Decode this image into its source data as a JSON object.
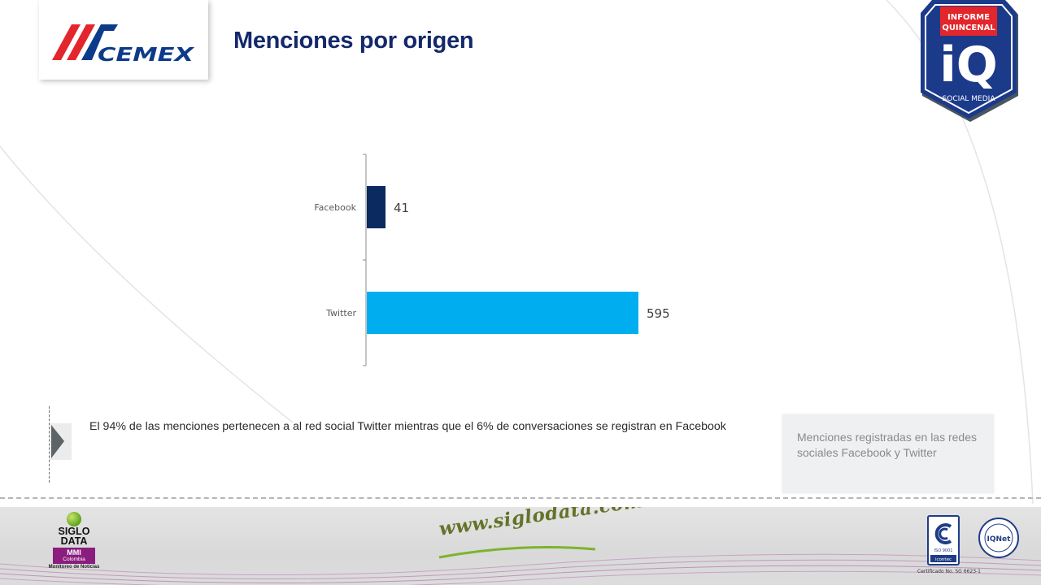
{
  "header": {
    "title": "Menciones por origen",
    "brand": "CEMEX",
    "badge": {
      "line1": "INFORME",
      "line2": "QUINCENAL",
      "logo": "iQ",
      "line3": "SOCIAL MEDIA"
    }
  },
  "colors": {
    "title": "#13296b",
    "facebook": "#0b2a5f",
    "twitter": "#00aeef",
    "cemex_red": "#e3262c",
    "cemex_blue": "#0d3a8a"
  },
  "chart_data": {
    "type": "bar",
    "orientation": "horizontal",
    "categories": [
      "Facebook",
      "Twitter"
    ],
    "values": [
      41,
      595
    ],
    "colors": [
      "#0b2a5f",
      "#00aeef"
    ],
    "title": "",
    "xlabel": "",
    "ylabel": "",
    "grid": false,
    "data_labels": true
  },
  "callout": {
    "text": "El 94% de las menciones pertenecen a al red social Twitter mientras que el 6% de conversaciones se registran en Facebook"
  },
  "side_note": {
    "text": "Menciones registradas en las redes sociales Facebook y Twitter"
  },
  "footer": {
    "sd_line1": "SIGLO",
    "sd_line2": "DATA",
    "sd_mmi": "MMI",
    "sd_country": "Colombia",
    "sd_sub": "Monitoreo de Noticias",
    "url": "www.siglodata.com",
    "cert_iso": "ISO 9001",
    "cert_icontec": "icontec",
    "cert_iqnet": "IQNet",
    "cert_number": "Certificado No. SG 6623-1"
  }
}
